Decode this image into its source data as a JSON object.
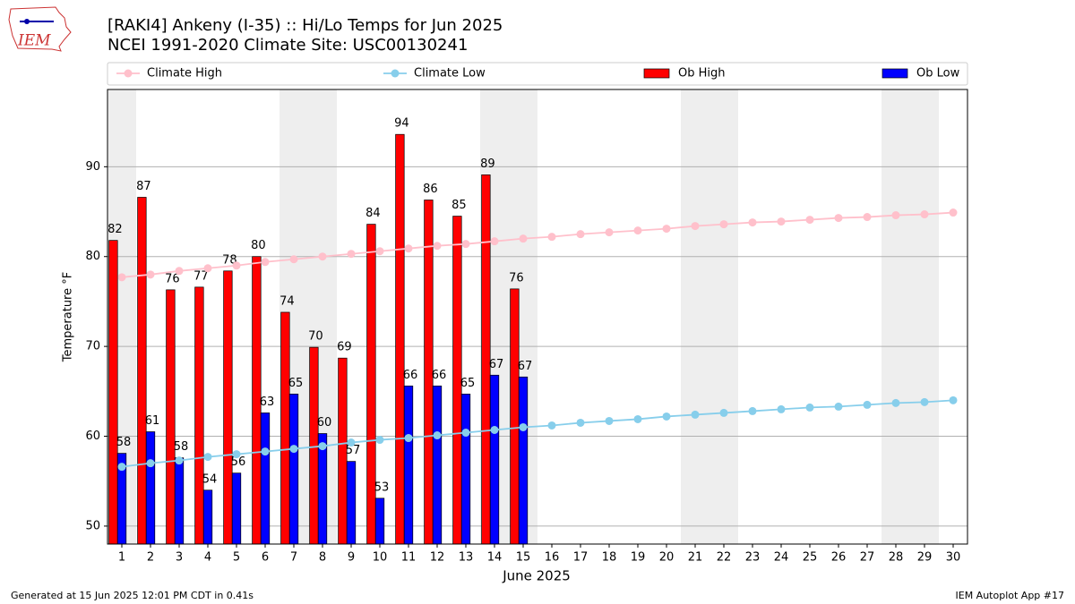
{
  "chart_data": {
    "type": "bar",
    "title": "[RAKI4] Ankeny (I-35) :: Hi/Lo Temps for Jun 2025",
    "subtitle": "NCEI 1991-2020 Climate Site: USC00130241",
    "logo_text": "IEM",
    "x_label": "June 2025",
    "y_label": "Temperature °F",
    "footer_left": "Generated at 15 Jun 2025 12:01 PM CDT in 0.41s",
    "footer_right": "IEM Autoplot App #17",
    "categories": [
      "1",
      "2",
      "3",
      "4",
      "5",
      "6",
      "7",
      "8",
      "9",
      "10",
      "11",
      "12",
      "13",
      "14",
      "15",
      "16",
      "17",
      "18",
      "19",
      "20",
      "21",
      "22",
      "23",
      "24",
      "25",
      "26",
      "27",
      "28",
      "29",
      "30"
    ],
    "shaded": [
      "1",
      "7",
      "8",
      "14",
      "15",
      "21",
      "22",
      "28",
      "29"
    ],
    "ylim": [
      48,
      98.6
    ],
    "yticks": [
      50,
      60,
      70,
      80,
      90
    ],
    "grid": true,
    "legend": "top",
    "series": [
      {
        "name": "Climate High",
        "kind": "line",
        "color": "#ffc0cb",
        "values": [
          77.7,
          78.0,
          78.4,
          78.7,
          79.0,
          79.4,
          79.7,
          80.0,
          80.3,
          80.6,
          80.9,
          81.2,
          81.4,
          81.7,
          82.0,
          82.2,
          82.5,
          82.7,
          82.9,
          83.1,
          83.4,
          83.6,
          83.8,
          83.9,
          84.1,
          84.3,
          84.4,
          84.6,
          84.7,
          84.9
        ]
      },
      {
        "name": "Climate Low",
        "kind": "line",
        "color": "#87ceeb",
        "values": [
          56.6,
          57.0,
          57.3,
          57.7,
          58.0,
          58.3,
          58.6,
          58.9,
          59.3,
          59.6,
          59.8,
          60.1,
          60.4,
          60.7,
          61.0,
          61.2,
          61.5,
          61.7,
          61.9,
          62.2,
          62.4,
          62.6,
          62.8,
          63.0,
          63.2,
          63.3,
          63.5,
          63.7,
          63.8,
          64.0
        ]
      },
      {
        "name": "Ob High",
        "kind": "bar",
        "color": "#ff0000",
        "values": [
          81.8,
          86.6,
          76.3,
          76.6,
          78.4,
          80.0,
          73.8,
          69.9,
          68.7,
          83.6,
          93.6,
          86.3,
          84.5,
          89.1,
          76.4,
          null,
          null,
          null,
          null,
          null,
          null,
          null,
          null,
          null,
          null,
          null,
          null,
          null,
          null,
          null
        ],
        "value_labels": [
          "82",
          "87",
          "76",
          "77",
          "78",
          "80",
          "74",
          "70",
          "69",
          "84",
          "94",
          "86",
          "85",
          "89",
          "76",
          null,
          null,
          null,
          null,
          null,
          null,
          null,
          null,
          null,
          null,
          null,
          null,
          null,
          null,
          null
        ]
      },
      {
        "name": "Ob Low",
        "kind": "bar",
        "color": "#0000ff",
        "values": [
          58.1,
          60.5,
          57.6,
          54.0,
          55.9,
          62.6,
          64.7,
          60.3,
          57.2,
          53.1,
          65.6,
          65.6,
          64.7,
          66.8,
          66.6,
          null,
          null,
          null,
          null,
          null,
          null,
          null,
          null,
          null,
          null,
          null,
          null,
          null,
          null,
          null
        ],
        "value_labels": [
          "58",
          "61",
          "58",
          "54",
          "56",
          "63",
          "65",
          "60",
          "57",
          "53",
          "66",
          "66",
          "65",
          "67",
          "67",
          null,
          null,
          null,
          null,
          null,
          null,
          null,
          null,
          null,
          null,
          null,
          null,
          null,
          null,
          null
        ]
      }
    ]
  }
}
